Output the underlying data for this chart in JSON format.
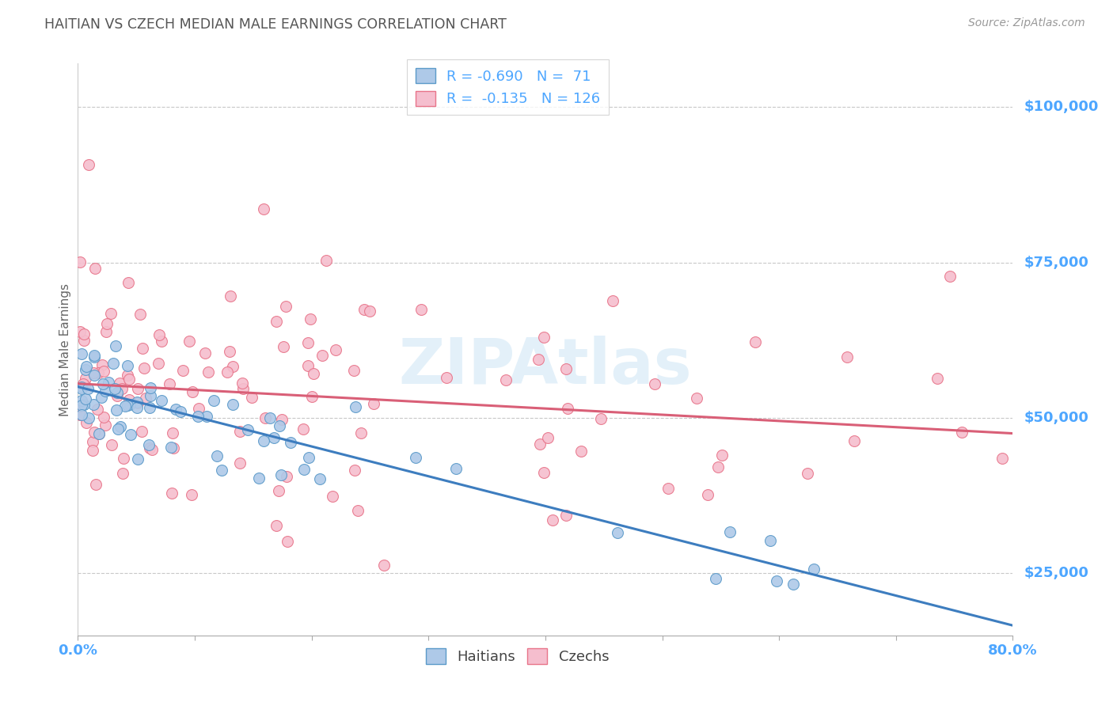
{
  "title": "HAITIAN VS CZECH MEDIAN MALE EARNINGS CORRELATION CHART",
  "source": "Source: ZipAtlas.com",
  "ylabel": "Median Male Earnings",
  "ytick_labels": [
    "$25,000",
    "$50,000",
    "$75,000",
    "$100,000"
  ],
  "ytick_values": [
    25000,
    50000,
    75000,
    100000
  ],
  "watermark": "ZIPAtlas",
  "legend_blue_label": "R = -0.690   N =  71",
  "legend_pink_label": "R =  -0.135   N = 126",
  "blue_fill_color": "#aec9e8",
  "pink_fill_color": "#f5bece",
  "blue_edge_color": "#5b9ac9",
  "pink_edge_color": "#e8758a",
  "blue_line_color": "#3d7dbf",
  "pink_line_color": "#d95f77",
  "background_color": "#ffffff",
  "grid_color": "#c8c8c8",
  "axis_label_color": "#4da6ff",
  "title_color": "#555555",
  "source_color": "#999999",
  "ylabel_color": "#666666",
  "xmin": 0.0,
  "xmax": 0.8,
  "ymin": 15000,
  "ymax": 107000,
  "blue_intercept": 55000,
  "blue_slope": -48000,
  "pink_intercept": 55500,
  "pink_slope": -10000,
  "xtick_positions": [
    0.0,
    0.1,
    0.2,
    0.3,
    0.4,
    0.5,
    0.6,
    0.7,
    0.8
  ]
}
